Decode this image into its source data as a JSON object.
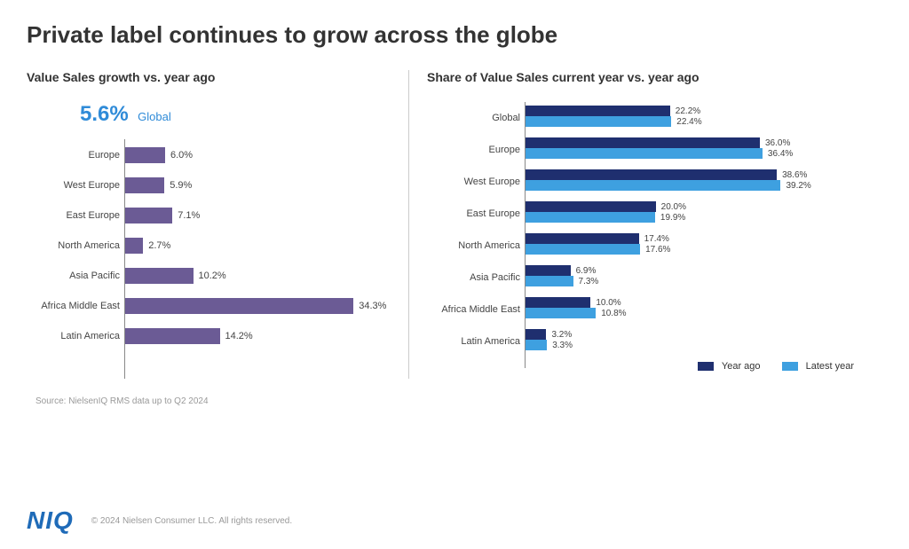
{
  "title": "Private label continues to grow across the globe",
  "left_chart": {
    "type": "bar-horizontal",
    "subtitle": "Value Sales growth vs. year ago",
    "headline_value": "5.6%",
    "headline_label": "Global",
    "headline_color": "#2f8bd8",
    "bar_color": "#6b5b95",
    "max_value": 40,
    "axis_color": "#888888",
    "label_fontsize": 11,
    "value_fontsize": 11,
    "rows": [
      {
        "label": "Europe",
        "value": 6.0,
        "display": "6.0%"
      },
      {
        "label": "West Europe",
        "value": 5.9,
        "display": "5.9%"
      },
      {
        "label": "East Europe",
        "value": 7.1,
        "display": "7.1%"
      },
      {
        "label": "North America",
        "value": 2.7,
        "display": "2.7%"
      },
      {
        "label": "Asia Pacific",
        "value": 10.2,
        "display": "10.2%"
      },
      {
        "label": "Africa Middle East",
        "value": 34.3,
        "display": "34.3%"
      },
      {
        "label": "Latin America",
        "value": 14.2,
        "display": "14.2%"
      }
    ]
  },
  "right_chart": {
    "type": "grouped-bar-horizontal",
    "subtitle": "Share of Value Sales current year vs. year ago",
    "max_value": 45,
    "series": [
      {
        "name": "Year ago",
        "color": "#1f2f6f"
      },
      {
        "name": "Latest year",
        "color": "#3ea0e0"
      }
    ],
    "rows": [
      {
        "label": "Global",
        "year_ago": 22.2,
        "year_ago_display": "22.2%",
        "latest": 22.4,
        "latest_display": "22.4%"
      },
      {
        "label": "Europe",
        "year_ago": 36.0,
        "year_ago_display": "36.0%",
        "latest": 36.4,
        "latest_display": "36.4%"
      },
      {
        "label": "West Europe",
        "year_ago": 38.6,
        "year_ago_display": "38.6%",
        "latest": 39.2,
        "latest_display": "39.2%"
      },
      {
        "label": "East Europe",
        "year_ago": 20.0,
        "year_ago_display": "20.0%",
        "latest": 19.9,
        "latest_display": "19.9%"
      },
      {
        "label": "North America",
        "year_ago": 17.4,
        "year_ago_display": "17.4%",
        "latest": 17.6,
        "latest_display": "17.6%"
      },
      {
        "label": "Asia Pacific",
        "year_ago": 6.9,
        "year_ago_display": "6.9%",
        "latest": 7.3,
        "latest_display": "7.3%"
      },
      {
        "label": "Africa Middle East",
        "year_ago": 10.0,
        "year_ago_display": "10.0%",
        "latest": 10.8,
        "latest_display": "10.8%"
      },
      {
        "label": "Latin America",
        "year_ago": 3.2,
        "year_ago_display": "3.2%",
        "latest": 3.3,
        "latest_display": "3.3%"
      }
    ]
  },
  "source_note": "Source: NielsenIQ RMS data up to Q2 2024",
  "footer": {
    "logo_text": "NIQ",
    "logo_color": "#1f6bb8",
    "copyright": "© 2024 Nielsen Consumer LLC. All rights reserved."
  },
  "background_color": "#ffffff"
}
